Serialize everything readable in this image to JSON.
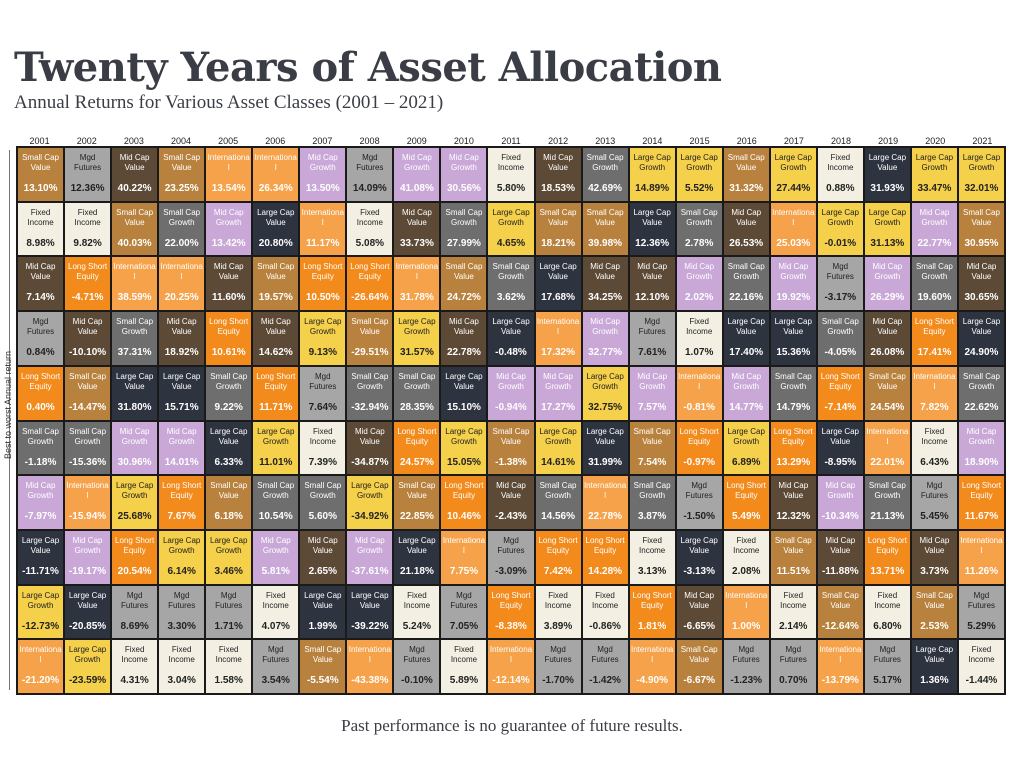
{
  "header": {
    "title": "Twenty Years of Asset Allocation",
    "subtitle": "Annual Returns for Various Asset Classes (2001 – 2021)"
  },
  "axis_label": "Best to worst Annual return",
  "footer": "Past performance is no guarantee of future results.",
  "asset_classes": {
    "SCV": {
      "label": "Small Cap\nValue",
      "bg": "#b8823e",
      "fg": "#ffffff"
    },
    "SCG": {
      "label": "Small Cap\nGrowth",
      "bg": "#6e6e6e",
      "fg": "#ffffff"
    },
    "MCV": {
      "label": "Mid Cap\nValue",
      "bg": "#5c4a36",
      "fg": "#ffffff"
    },
    "MCG": {
      "label": "Mid Cap\nGrowth",
      "bg": "#c9a8d8",
      "fg": "#ffffff"
    },
    "LCV": {
      "label": "Large Cap\nValue",
      "bg": "#2e3340",
      "fg": "#ffffff"
    },
    "LCG": {
      "label": "Large Cap\nGrowth",
      "bg": "#f5d04a",
      "fg": "#222222"
    },
    "INT": {
      "label": "Internationa\nl",
      "bg": "#f5a24b",
      "fg": "#ffffff"
    },
    "MF": {
      "label": "Mgd\nFutures",
      "bg": "#a6a6a6",
      "fg": "#222222"
    },
    "FI": {
      "label": "Fixed\nIncome",
      "bg": "#f3f0e3",
      "fg": "#222222"
    },
    "LSE": {
      "label": "Long Short\nEquity",
      "bg": "#f28a1c",
      "fg": "#ffffff"
    }
  },
  "chart_data": {
    "type": "table",
    "years": [
      "2001",
      "2002",
      "2003",
      "2004",
      "2005",
      "2006",
      "2007",
      "2008",
      "2009",
      "2010",
      "2011",
      "2012",
      "2013",
      "2014",
      "2015",
      "2016",
      "2017",
      "2018",
      "2019",
      "2020",
      "2021"
    ],
    "columns": [
      [
        [
          "SCV",
          "13.10%"
        ],
        [
          "FI",
          "8.98%"
        ],
        [
          "MCV",
          "7.14%"
        ],
        [
          "MF",
          "0.84%"
        ],
        [
          "LSE",
          "0.40%"
        ],
        [
          "SCG",
          "-1.18%"
        ],
        [
          "MCG",
          "-7.97%"
        ],
        [
          "LCV",
          "-11.71%"
        ],
        [
          "LCG",
          "-12.73%"
        ],
        [
          "INT",
          "-21.20%"
        ]
      ],
      [
        [
          "MF",
          "12.36%"
        ],
        [
          "FI",
          "9.82%"
        ],
        [
          "LSE",
          "-4.71%"
        ],
        [
          "MCV",
          "-10.10%"
        ],
        [
          "SCV",
          "-14.47%"
        ],
        [
          "SCG",
          "-15.36%"
        ],
        [
          "INT",
          "-15.94%"
        ],
        [
          "MCG",
          "-19.17%"
        ],
        [
          "LCV",
          "-20.85%"
        ],
        [
          "LCG",
          "-23.59%"
        ]
      ],
      [
        [
          "MCV",
          "40.22%"
        ],
        [
          "SCV",
          "40.03%"
        ],
        [
          "INT",
          "38.59%"
        ],
        [
          "SCG",
          "37.31%"
        ],
        [
          "LCV",
          "31.80%"
        ],
        [
          "MCG",
          "30.96%"
        ],
        [
          "LCG",
          "25.68%"
        ],
        [
          "LSE",
          "20.54%"
        ],
        [
          "MF",
          "8.69%"
        ],
        [
          "FI",
          "4.31%"
        ]
      ],
      [
        [
          "SCV",
          "23.25%"
        ],
        [
          "SCG",
          "22.00%"
        ],
        [
          "INT",
          "20.25%"
        ],
        [
          "MCV",
          "18.92%"
        ],
        [
          "LCV",
          "15.71%"
        ],
        [
          "MCG",
          "14.01%"
        ],
        [
          "LSE",
          "7.67%"
        ],
        [
          "LCG",
          "6.14%"
        ],
        [
          "MF",
          "3.30%"
        ],
        [
          "FI",
          "3.04%"
        ]
      ],
      [
        [
          "INT",
          "13.54%"
        ],
        [
          "MCG",
          "13.42%"
        ],
        [
          "MCV",
          "11.60%"
        ],
        [
          "LSE",
          "10.61%"
        ],
        [
          "SCG",
          "9.22%"
        ],
        [
          "LCV",
          "6.33%"
        ],
        [
          "SCV",
          "6.18%"
        ],
        [
          "LCG",
          "3.46%"
        ],
        [
          "MF",
          "1.71%"
        ],
        [
          "FI",
          "1.58%"
        ]
      ],
      [
        [
          "INT",
          "26.34%"
        ],
        [
          "LCV",
          "20.80%"
        ],
        [
          "SCV",
          "19.57%"
        ],
        [
          "MCV",
          "14.62%"
        ],
        [
          "LSE",
          "11.71%"
        ],
        [
          "LCG",
          "11.01%"
        ],
        [
          "SCG",
          "10.54%"
        ],
        [
          "MCG",
          "5.81%"
        ],
        [
          "FI",
          "4.07%"
        ],
        [
          "MF",
          "3.54%"
        ]
      ],
      [
        [
          "MCG",
          "13.50%"
        ],
        [
          "INT",
          "11.17%"
        ],
        [
          "LSE",
          "10.50%"
        ],
        [
          "LCG",
          "9.13%"
        ],
        [
          "MF",
          "7.64%"
        ],
        [
          "FI",
          "7.39%"
        ],
        [
          "SCG",
          "5.60%"
        ],
        [
          "MCV",
          "2.65%"
        ],
        [
          "LCV",
          "1.99%"
        ],
        [
          "SCV",
          "-5.54%"
        ]
      ],
      [
        [
          "MF",
          "14.09%"
        ],
        [
          "FI",
          "5.08%"
        ],
        [
          "LSE",
          "-26.64%"
        ],
        [
          "SCV",
          "-29.51%"
        ],
        [
          "SCG",
          "-32.94%"
        ],
        [
          "MCV",
          "-34.87%"
        ],
        [
          "LCG",
          "-34.92%"
        ],
        [
          "MCG",
          "-37.61%"
        ],
        [
          "LCV",
          "-39.22%"
        ],
        [
          "INT",
          "-43.38%"
        ]
      ],
      [
        [
          "MCG",
          "41.08%"
        ],
        [
          "MCV",
          "33.73%"
        ],
        [
          "INT",
          "31.78%"
        ],
        [
          "LCG",
          "31.57%"
        ],
        [
          "SCG",
          "28.35%"
        ],
        [
          "LSE",
          "24.57%"
        ],
        [
          "SCV",
          "22.85%"
        ],
        [
          "LCV",
          "21.18%"
        ],
        [
          "FI",
          "5.24%"
        ],
        [
          "MF",
          "-0.10%"
        ]
      ],
      [
        [
          "MCG",
          "30.56%"
        ],
        [
          "SCG",
          "27.99%"
        ],
        [
          "SCV",
          "24.72%"
        ],
        [
          "MCV",
          "22.78%"
        ],
        [
          "LCV",
          "15.10%"
        ],
        [
          "LCG",
          "15.05%"
        ],
        [
          "LSE",
          "10.46%"
        ],
        [
          "INT",
          "7.75%"
        ],
        [
          "MF",
          "7.05%"
        ],
        [
          "FI",
          "5.89%"
        ]
      ],
      [
        [
          "FI",
          "5.80%"
        ],
        [
          "LCG",
          "4.65%"
        ],
        [
          "SCG",
          "3.62%"
        ],
        [
          "LCV",
          "-0.48%"
        ],
        [
          "MCG",
          "-0.94%"
        ],
        [
          "SCV",
          "-1.38%"
        ],
        [
          "MCV",
          "-2.43%"
        ],
        [
          "MF",
          "-3.09%"
        ],
        [
          "LSE",
          "-8.38%"
        ],
        [
          "INT",
          "-12.14%"
        ]
      ],
      [
        [
          "MCV",
          "18.53%"
        ],
        [
          "SCV",
          "18.21%"
        ],
        [
          "LCV",
          "17.68%"
        ],
        [
          "INT",
          "17.32%"
        ],
        [
          "MCG",
          "17.27%"
        ],
        [
          "LCG",
          "14.61%"
        ],
        [
          "SCG",
          "14.56%"
        ],
        [
          "LSE",
          "7.42%"
        ],
        [
          "FI",
          "3.89%"
        ],
        [
          "MF",
          "-1.70%"
        ]
      ],
      [
        [
          "SCG",
          "42.69%"
        ],
        [
          "SCV",
          "39.98%"
        ],
        [
          "MCV",
          "34.25%"
        ],
        [
          "MCG",
          "32.77%"
        ],
        [
          "LCG",
          "32.75%"
        ],
        [
          "LCV",
          "31.99%"
        ],
        [
          "INT",
          "22.78%"
        ],
        [
          "LSE",
          "14.28%"
        ],
        [
          "FI",
          "-0.86%"
        ],
        [
          "MF",
          "-1.42%"
        ]
      ],
      [
        [
          "LCG",
          "14.89%"
        ],
        [
          "LCV",
          "12.36%"
        ],
        [
          "MCV",
          "12.10%"
        ],
        [
          "MF",
          "7.61%"
        ],
        [
          "MCG",
          "7.57%"
        ],
        [
          "SCV",
          "7.54%"
        ],
        [
          "SCG",
          "3.87%"
        ],
        [
          "FI",
          "3.13%"
        ],
        [
          "LSE",
          "1.81%"
        ],
        [
          "INT",
          "-4.90%"
        ]
      ],
      [
        [
          "LCG",
          "5.52%"
        ],
        [
          "SCG",
          "2.78%"
        ],
        [
          "MCG",
          "2.02%"
        ],
        [
          "FI",
          "1.07%"
        ],
        [
          "INT",
          "-0.81%"
        ],
        [
          "LSE",
          "-0.97%"
        ],
        [
          "MF",
          "-1.50%"
        ],
        [
          "LCV",
          "-3.13%"
        ],
        [
          "MCV",
          "-6.65%"
        ],
        [
          "SCV",
          "-6.67%"
        ]
      ],
      [
        [
          "SCV",
          "31.32%"
        ],
        [
          "MCV",
          "26.53%"
        ],
        [
          "SCG",
          "22.16%"
        ],
        [
          "LCV",
          "17.40%"
        ],
        [
          "MCG",
          "14.77%"
        ],
        [
          "LCG",
          "6.89%"
        ],
        [
          "LSE",
          "5.49%"
        ],
        [
          "FI",
          "2.08%"
        ],
        [
          "INT",
          "1.00%"
        ],
        [
          "MF",
          "-1.23%"
        ]
      ],
      [
        [
          "LCG",
          "27.44%"
        ],
        [
          "INT",
          "25.03%"
        ],
        [
          "MCG",
          "19.92%"
        ],
        [
          "LCV",
          "15.36%"
        ],
        [
          "SCG",
          "14.79%"
        ],
        [
          "LSE",
          "13.29%"
        ],
        [
          "MCV",
          "12.32%"
        ],
        [
          "SCV",
          "11.51%"
        ],
        [
          "FI",
          "2.14%"
        ],
        [
          "MF",
          "0.70%"
        ]
      ],
      [
        [
          "FI",
          "0.88%"
        ],
        [
          "LCG",
          "-0.01%"
        ],
        [
          "MF",
          "-3.17%"
        ],
        [
          "SCG",
          "-4.05%"
        ],
        [
          "LSE",
          "-7.14%"
        ],
        [
          "LCV",
          "-8.95%"
        ],
        [
          "MCG",
          "-10.34%"
        ],
        [
          "MCV",
          "-11.88%"
        ],
        [
          "SCV",
          "-12.64%"
        ],
        [
          "INT",
          "-13.79%"
        ]
      ],
      [
        [
          "LCV",
          "31.93%"
        ],
        [
          "LCG",
          "31.13%"
        ],
        [
          "MCG",
          "26.29%"
        ],
        [
          "MCV",
          "26.08%"
        ],
        [
          "SCV",
          "24.54%"
        ],
        [
          "INT",
          "22.01%"
        ],
        [
          "SCG",
          "21.13%"
        ],
        [
          "LSE",
          "13.71%"
        ],
        [
          "FI",
          "6.80%"
        ],
        [
          "MF",
          "5.17%"
        ]
      ],
      [
        [
          "LCG",
          "33.47%"
        ],
        [
          "MCG",
          "22.77%"
        ],
        [
          "SCG",
          "19.60%"
        ],
        [
          "LSE",
          "17.41%"
        ],
        [
          "INT",
          "7.82%"
        ],
        [
          "FI",
          "6.43%"
        ],
        [
          "MF",
          "5.45%"
        ],
        [
          "MCV",
          "3.73%"
        ],
        [
          "SCV",
          "2.53%"
        ],
        [
          "LCV",
          "1.36%"
        ]
      ],
      [
        [
          "LCG",
          "32.01%"
        ],
        [
          "SCV",
          "30.95%"
        ],
        [
          "MCV",
          "30.65%"
        ],
        [
          "LCV",
          "24.90%"
        ],
        [
          "SCG",
          "22.62%"
        ],
        [
          "MCG",
          "18.90%"
        ],
        [
          "LSE",
          "11.67%"
        ],
        [
          "INT",
          "11.26%"
        ],
        [
          "MF",
          "5.29%"
        ],
        [
          "FI",
          "-1.44%"
        ]
      ]
    ]
  }
}
